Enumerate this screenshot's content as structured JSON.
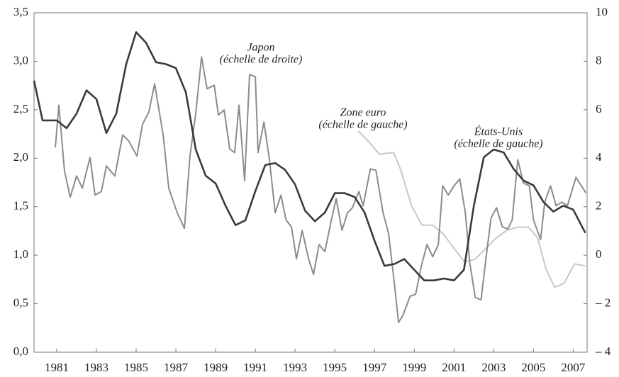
{
  "chart_data": {
    "type": "line",
    "xlim": [
      1979.86,
      2007.7
    ],
    "xticks": [
      1981,
      1983,
      1985,
      1987,
      1989,
      1991,
      1993,
      1995,
      1997,
      1999,
      2001,
      2003,
      2005,
      2007
    ],
    "ylim": [
      0,
      3.5
    ],
    "yticks": [
      {
        "value": 0,
        "label": "0,0"
      },
      {
        "value": 0.5,
        "label": "0,5"
      },
      {
        "value": 1,
        "label": "1,0"
      },
      {
        "value": 1.5,
        "label": "1,5"
      },
      {
        "value": 2,
        "label": "2,0"
      },
      {
        "value": 2.5,
        "label": "2,5"
      },
      {
        "value": 3,
        "label": "3,0"
      },
      {
        "value": 3.5,
        "label": "3,5"
      }
    ],
    "y2lim": [
      -4,
      10
    ],
    "y2ticks": [
      {
        "value": -4,
        "label": "– 4"
      },
      {
        "value": -2,
        "label": "– 2"
      },
      0,
      2,
      4,
      6,
      8,
      10
    ],
    "grid": false,
    "annotations": [
      [
        "Japon",
        "(échelle de droite)"
      ],
      [
        "Zone euro",
        "(échelle de gauche)"
      ],
      [
        "États-Unis",
        "(échelle de gauche)"
      ]
    ],
    "series": [
      {
        "color": "#3a3a3a",
        "axis": "y",
        "x": [
          1979.86,
          1980.29,
          1981,
          1981.5,
          1982,
          1982.5,
          1983,
          1983.5,
          1984,
          1984.5,
          1985,
          1985.5,
          1986,
          1986.5,
          1987,
          1987.5,
          1988,
          1988.5,
          1989,
          1989.5,
          1990,
          1990.5,
          1991,
          1991.5,
          1992,
          1992.5,
          1993,
          1993.5,
          1994,
          1994.5,
          1995,
          1995.5,
          1996,
          1996.5,
          1997,
          1997.5,
          1998,
          1998.5,
          1999,
          1999.5,
          2000,
          2000.5,
          2001,
          2001.5,
          2002,
          2002.5,
          2003,
          2003.5,
          2004,
          2004.5,
          2005,
          2005.5,
          2006,
          2006.5,
          2007,
          2007.61
        ],
        "values": [
          2.8,
          2.39,
          2.39,
          2.31,
          2.46,
          2.7,
          2.61,
          2.26,
          2.46,
          2.97,
          3.3,
          3.19,
          2.99,
          2.97,
          2.93,
          2.68,
          2.09,
          1.82,
          1.74,
          1.51,
          1.31,
          1.36,
          1.66,
          1.93,
          1.95,
          1.88,
          1.73,
          1.46,
          1.35,
          1.44,
          1.64,
          1.64,
          1.6,
          1.44,
          1.15,
          0.89,
          0.91,
          0.96,
          0.85,
          0.74,
          0.74,
          0.76,
          0.74,
          0.85,
          1.51,
          2.01,
          2.09,
          2.06,
          1.89,
          1.77,
          1.72,
          1.55,
          1.45,
          1.51,
          1.47,
          1.23
        ]
      },
      {
        "color": "#8c8c8c",
        "axis": "y2",
        "x": [
          1980.93,
          1981.11,
          1981.39,
          1981.68,
          1982.0,
          1982.29,
          1982.68,
          1982.93,
          1983.25,
          1983.5,
          1983.93,
          1984.32,
          1984.61,
          1985.04,
          1985.32,
          1985.64,
          1985.93,
          1986.36,
          1986.64,
          1987.07,
          1987.43,
          1987.71,
          1988.0,
          1988.29,
          1988.57,
          1988.93,
          1989.14,
          1989.43,
          1989.71,
          1989.96,
          1990.18,
          1990.46,
          1990.71,
          1991.0,
          1991.14,
          1991.43,
          1991.71,
          1992.0,
          1992.29,
          1992.54,
          1992.82,
          1993.07,
          1993.36,
          1993.68,
          1993.93,
          1994.21,
          1994.5,
          1994.79,
          1995.07,
          1995.36,
          1995.64,
          1995.89,
          1996.21,
          1996.43,
          1996.79,
          1997.07,
          1997.43,
          1997.71,
          1998.0,
          1998.21,
          1998.43,
          1998.79,
          1999.07,
          1999.36,
          1999.64,
          1999.93,
          2000.21,
          2000.43,
          2000.71,
          2001.0,
          2001.29,
          2001.57,
          2001.79,
          2002.07,
          2002.36,
          2002.64,
          2002.86,
          2003.14,
          2003.43,
          2003.71,
          2003.93,
          2004.21,
          2004.5,
          2004.79,
          2005.0,
          2005.36,
          2005.57,
          2005.86,
          2006.14,
          2006.43,
          2006.71,
          2007.14,
          2007.64
        ],
        "values": [
          4.44,
          6.19,
          3.5,
          2.39,
          3.27,
          2.77,
          4.03,
          2.48,
          2.63,
          3.68,
          3.27,
          4.96,
          4.73,
          4.09,
          5.4,
          5.9,
          7.07,
          4.96,
          2.77,
          1.75,
          1.11,
          4.09,
          5.84,
          8.18,
          6.86,
          7.01,
          5.78,
          5.99,
          4.38,
          4.23,
          6.19,
          3.07,
          7.45,
          7.36,
          4.23,
          5.49,
          3.94,
          1.75,
          2.48,
          1.46,
          1.17,
          -0.15,
          1.02,
          -0.15,
          -0.79,
          0.44,
          0.15,
          1.31,
          2.34,
          1.02,
          1.75,
          1.96,
          2.63,
          2.04,
          3.56,
          3.5,
          1.75,
          0.88,
          -1.17,
          -2.77,
          -2.48,
          -1.69,
          -1.61,
          -0.44,
          0.44,
          -0.06,
          0.44,
          2.86,
          2.48,
          2.86,
          3.15,
          1.75,
          -0.29,
          -1.75,
          -1.84,
          0.06,
          1.52,
          1.96,
          1.17,
          1.08,
          1.46,
          3.94,
          2.98,
          2.86,
          1.46,
          0.64,
          2.19,
          2.86,
          2.04,
          2.19,
          2.04,
          3.21,
          2.57
        ]
      },
      {
        "color": "#c8c8c8",
        "axis": "y",
        "x": [
          1996.18,
          1996.71,
          1997.25,
          1997.96,
          1998.32,
          1998.86,
          1999.39,
          1999.93,
          2000.46,
          2001.0,
          2001.54,
          2002.07,
          2002.61,
          2003.14,
          2003.68,
          2004.21,
          2004.75,
          2005.21,
          2005.64,
          2006.07,
          2006.54,
          2007.07,
          2007.61
        ],
        "values": [
          2.28,
          2.17,
          2.04,
          2.06,
          1.88,
          1.51,
          1.31,
          1.31,
          1.22,
          1.07,
          0.93,
          0.96,
          1.07,
          1.18,
          1.26,
          1.29,
          1.29,
          1.18,
          0.85,
          0.67,
          0.71,
          0.91,
          0.89
        ]
      }
    ]
  }
}
